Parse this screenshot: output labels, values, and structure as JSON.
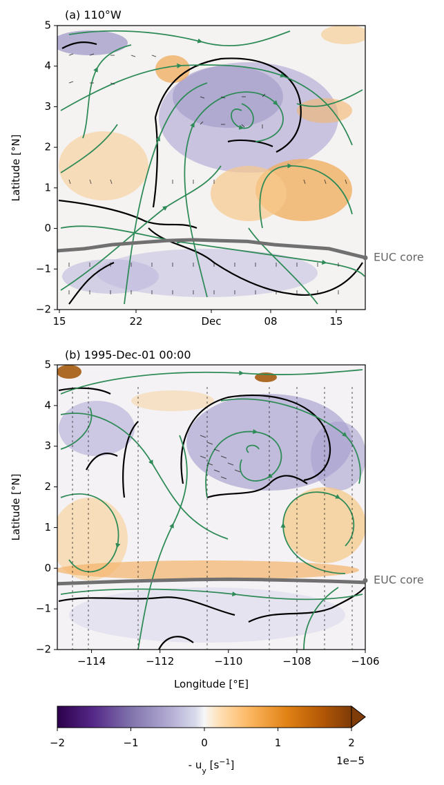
{
  "colors": {
    "stream": "#2e8b57",
    "contour": "#000000",
    "euc": "#707070",
    "quiver": "#111111",
    "cmap_low": "#2d004b",
    "cmap_mid": "#f7f7f7",
    "cmap_high": "#7f3b08"
  },
  "chart_data": [
    {
      "type": "heatmap",
      "panel": "a",
      "title": "(a) 110°W",
      "xlabel": "",
      "ylabel": "Latitude [°N]",
      "xticks": [
        "15",
        "22",
        "Dec",
        "08",
        "15"
      ],
      "xlim": [
        "1995-11-15",
        "1995-12-19"
      ],
      "ylim": [
        -2,
        5
      ],
      "yticks": [
        -2,
        -1,
        0,
        1,
        2,
        3,
        4,
        5
      ],
      "annotation": "EUC core",
      "euc_core": {
        "x": [
          "1995-11-15",
          "1995-11-18",
          "1995-11-21",
          "1995-11-24",
          "1995-11-27",
          "1995-11-30",
          "1995-12-03",
          "1995-12-06",
          "1995-12-09",
          "1995-12-12",
          "1995-12-15",
          "1995-12-19"
        ],
        "y": [
          -0.55,
          -0.5,
          -0.4,
          -0.35,
          -0.3,
          -0.28,
          -0.3,
          -0.32,
          -0.4,
          -0.45,
          -0.5,
          -0.72
        ]
      }
    },
    {
      "type": "heatmap",
      "panel": "b",
      "title": "(b) 1995-Dec-01 00:00",
      "xlabel": "Longitude [°E]",
      "ylabel": "Latitude [°N]",
      "xticks": [
        "−114",
        "−112",
        "−110",
        "−108",
        "−106"
      ],
      "xlim": [
        -115,
        -106
      ],
      "ylim": [
        -2,
        5
      ],
      "yticks": [
        -2,
        -1,
        0,
        1,
        2,
        3,
        4,
        5
      ],
      "annotation": "EUC core",
      "euc_core": {
        "x": [
          -115,
          -114,
          -113,
          -112,
          -111,
          -110,
          -109,
          -108,
          -107,
          -106
        ],
        "y": [
          -0.38,
          -0.35,
          -0.32,
          -0.3,
          -0.28,
          -0.27,
          -0.28,
          -0.3,
          -0.32,
          -0.35
        ]
      }
    }
  ],
  "colorbar": {
    "label": "- u",
    "label_sub": "y",
    "label_units": " [s",
    "label_exp": "−1",
    "label_close": "]",
    "ticks": [
      "−2",
      "−1",
      "0",
      "1",
      "2"
    ],
    "range": [
      -2,
      2
    ],
    "offset_text": "1e−5",
    "extend": "max",
    "cmap": "PuOr_r"
  }
}
